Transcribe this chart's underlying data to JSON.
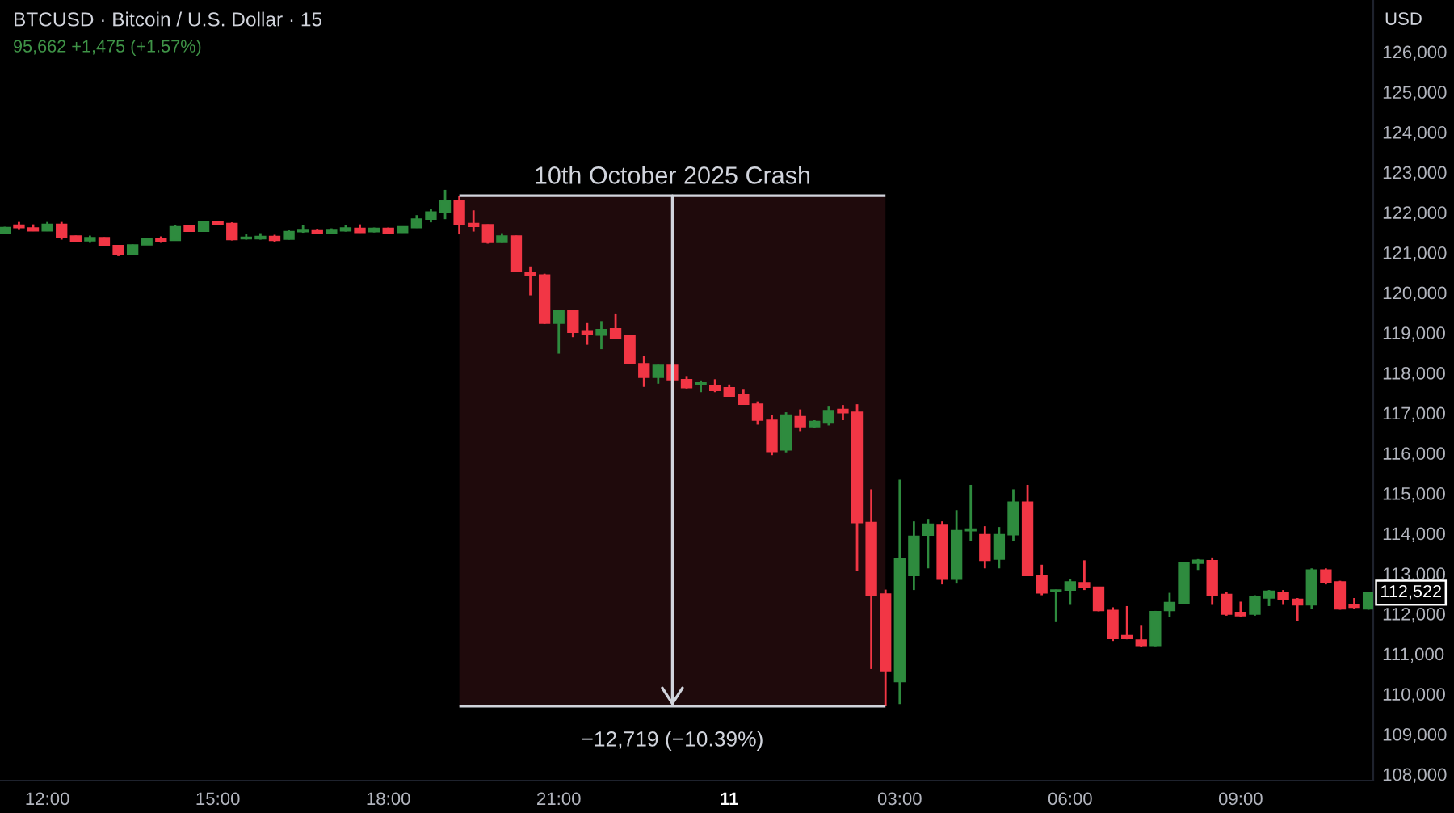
{
  "chart_data": {
    "type": "candlestick",
    "title": "BTCUSD · Bitcoin / U.S. Dollar · 15",
    "subtitle": "95,662 +1,475 (+1.57%)",
    "x": [
      "2025-10-10T11:15",
      "2025-10-10T11:30",
      "2025-10-10T11:45",
      "2025-10-10T12:00",
      "2025-10-10T12:15",
      "2025-10-10T12:30",
      "2025-10-10T12:45",
      "2025-10-10T13:00",
      "2025-10-10T13:15",
      "2025-10-10T13:30",
      "2025-10-10T13:45",
      "2025-10-10T14:00",
      "2025-10-10T14:15",
      "2025-10-10T14:30",
      "2025-10-10T14:45",
      "2025-10-10T15:00",
      "2025-10-10T15:15",
      "2025-10-10T15:30",
      "2025-10-10T15:45",
      "2025-10-10T16:00",
      "2025-10-10T16:15",
      "2025-10-10T16:30",
      "2025-10-10T16:45",
      "2025-10-10T17:00",
      "2025-10-10T17:15",
      "2025-10-10T17:30",
      "2025-10-10T17:45",
      "2025-10-10T18:00",
      "2025-10-10T18:15",
      "2025-10-10T18:30",
      "2025-10-10T18:45",
      "2025-10-10T19:00",
      "2025-10-10T19:15",
      "2025-10-10T19:30",
      "2025-10-10T19:45",
      "2025-10-10T20:00",
      "2025-10-10T20:15",
      "2025-10-10T20:30",
      "2025-10-10T20:45",
      "2025-10-10T21:00",
      "2025-10-10T21:15",
      "2025-10-10T21:30",
      "2025-10-10T21:45",
      "2025-10-10T22:00",
      "2025-10-10T22:15",
      "2025-10-10T22:30",
      "2025-10-10T22:45",
      "2025-10-10T23:00",
      "2025-10-10T23:15",
      "2025-10-10T23:30",
      "2025-10-10T23:45",
      "2025-10-11T00:00",
      "2025-10-11T00:15",
      "2025-10-11T00:30",
      "2025-10-11T00:45",
      "2025-10-11T01:00",
      "2025-10-11T01:15",
      "2025-10-11T01:30",
      "2025-10-11T01:45",
      "2025-10-11T02:00",
      "2025-10-11T02:15",
      "2025-10-11T02:30",
      "2025-10-11T02:45",
      "2025-10-11T03:00",
      "2025-10-11T03:15",
      "2025-10-11T03:30",
      "2025-10-11T03:45",
      "2025-10-11T04:00",
      "2025-10-11T04:15",
      "2025-10-11T04:30",
      "2025-10-11T04:45",
      "2025-10-11T05:00",
      "2025-10-11T05:15",
      "2025-10-11T05:30",
      "2025-10-11T05:45",
      "2025-10-11T06:00",
      "2025-10-11T06:15",
      "2025-10-11T06:30",
      "2025-10-11T06:45",
      "2025-10-11T07:00",
      "2025-10-11T07:15",
      "2025-10-11T07:30",
      "2025-10-11T07:45",
      "2025-10-11T08:00",
      "2025-10-11T08:15",
      "2025-10-11T08:30",
      "2025-10-11T08:45",
      "2025-10-11T09:00",
      "2025-10-11T09:15",
      "2025-10-11T09:30",
      "2025-10-11T09:45",
      "2025-10-11T10:00",
      "2025-10-11T10:15",
      "2025-10-11T10:30",
      "2025-10-11T10:45",
      "2025-10-11T11:00",
      "2025-10-11T11:15"
    ],
    "ohlc": [
      [
        121480,
        121640,
        121460,
        121620
      ],
      [
        121680,
        121760,
        121580,
        121620
      ],
      [
        121610,
        121700,
        121530,
        121540
      ],
      [
        121540,
        121760,
        121530,
        121700
      ],
      [
        121700,
        121760,
        121320,
        121370
      ],
      [
        121410,
        121420,
        121250,
        121280
      ],
      [
        121290,
        121420,
        121240,
        121370
      ],
      [
        121370,
        121380,
        121150,
        121170
      ],
      [
        121170,
        121180,
        120910,
        120950
      ],
      [
        120950,
        121200,
        120940,
        121190
      ],
      [
        121190,
        121350,
        121190,
        121340
      ],
      [
        121340,
        121400,
        121240,
        121280
      ],
      [
        121300,
        121690,
        121290,
        121640
      ],
      [
        121660,
        121690,
        121520,
        121530
      ],
      [
        121530,
        121790,
        121520,
        121770
      ],
      [
        121770,
        121790,
        121690,
        121700
      ],
      [
        121720,
        121750,
        121300,
        121320
      ],
      [
        121340,
        121450,
        121320,
        121380
      ],
      [
        121340,
        121480,
        121320,
        121400
      ],
      [
        121400,
        121440,
        121260,
        121300
      ],
      [
        121330,
        121550,
        121320,
        121520
      ],
      [
        121520,
        121680,
        121490,
        121570
      ],
      [
        121560,
        121590,
        121460,
        121480
      ],
      [
        121490,
        121600,
        121470,
        121570
      ],
      [
        121540,
        121680,
        121520,
        121610
      ],
      [
        121600,
        121700,
        121490,
        121500
      ],
      [
        121520,
        121620,
        121500,
        121600
      ],
      [
        121600,
        121620,
        121470,
        121490
      ],
      [
        121500,
        121650,
        121490,
        121640
      ],
      [
        121620,
        121930,
        121610,
        121830
      ],
      [
        121830,
        122090,
        121750,
        122010
      ],
      [
        121990,
        122560,
        121830,
        122300
      ],
      [
        122300,
        122416,
        121450,
        121700
      ],
      [
        121720,
        122050,
        121520,
        121650
      ],
      [
        121690,
        121700,
        121220,
        121250
      ],
      [
        121250,
        121480,
        121240,
        121410
      ],
      [
        121410,
        121420,
        120530,
        120540
      ],
      [
        120510,
        120650,
        119930,
        120440
      ],
      [
        120440,
        120470,
        119220,
        119240
      ],
      [
        119240,
        119570,
        118480,
        119560
      ],
      [
        119560,
        119570,
        118890,
        119010
      ],
      [
        119050,
        119240,
        118700,
        118950
      ],
      [
        118940,
        119290,
        118590,
        119080
      ],
      [
        119100,
        119480,
        118860,
        118870
      ],
      [
        118930,
        118940,
        118220,
        118230
      ],
      [
        118230,
        118430,
        117650,
        117890
      ],
      [
        117890,
        118200,
        117730,
        118190
      ],
      [
        118190,
        118200,
        117800,
        117830
      ],
      [
        117830,
        117920,
        117610,
        117630
      ],
      [
        117710,
        117810,
        117520,
        117750
      ],
      [
        117690,
        117840,
        117520,
        117560
      ],
      [
        117630,
        117710,
        117410,
        117420
      ],
      [
        117460,
        117600,
        117210,
        117220
      ],
      [
        117220,
        117290,
        116710,
        116820
      ],
      [
        116820,
        116950,
        115950,
        116040
      ],
      [
        116080,
        117020,
        116020,
        116950
      ],
      [
        116910,
        117090,
        116550,
        116660
      ],
      [
        116660,
        116820,
        116630,
        116790
      ],
      [
        116750,
        117160,
        116690,
        117060
      ],
      [
        117090,
        117200,
        116820,
        117010
      ],
      [
        117020,
        117220,
        113060,
        114270
      ],
      [
        114270,
        115100,
        110620,
        112460
      ],
      [
        112490,
        112600,
        109697,
        110580
      ],
      [
        110310,
        115340,
        109750,
        113360
      ],
      [
        112950,
        114300,
        112590,
        113930
      ],
      [
        113960,
        114360,
        113130,
        114230
      ],
      [
        114200,
        114300,
        112730,
        112860
      ],
      [
        112860,
        114580,
        112750,
        114070
      ],
      [
        114070,
        115210,
        113800,
        114110
      ],
      [
        113970,
        114180,
        113130,
        113330
      ],
      [
        113360,
        114160,
        113130,
        113970
      ],
      [
        113970,
        115100,
        113800,
        114780
      ],
      [
        114780,
        115210,
        112940,
        112950
      ],
      [
        112950,
        113220,
        112460,
        112520
      ],
      [
        112550,
        112600,
        111790,
        112590
      ],
      [
        112590,
        112860,
        112220,
        112790
      ],
      [
        112770,
        113330,
        112590,
        112660
      ],
      [
        112660,
        112670,
        112060,
        112080
      ],
      [
        112080,
        112160,
        111320,
        111380
      ],
      [
        111450,
        112190,
        111360,
        111380
      ],
      [
        111340,
        111720,
        111180,
        111210
      ],
      [
        111210,
        112070,
        111190,
        112050
      ],
      [
        112080,
        112520,
        111920,
        112280
      ],
      [
        112260,
        113280,
        112240,
        113260
      ],
      [
        113260,
        113360,
        113090,
        113330
      ],
      [
        113320,
        113400,
        112220,
        112460
      ],
      [
        112480,
        112550,
        111950,
        111990
      ],
      [
        112030,
        112300,
        111920,
        111950
      ],
      [
        111990,
        112460,
        111950,
        112420
      ],
      [
        112390,
        112590,
        112190,
        112560
      ],
      [
        112520,
        112590,
        112220,
        112350
      ],
      [
        112360,
        112390,
        111810,
        112220
      ],
      [
        112220,
        113130,
        112120,
        113090
      ],
      [
        113090,
        113130,
        112730,
        112790
      ],
      [
        112790,
        112820,
        112100,
        112120
      ],
      [
        112220,
        112390,
        112120,
        112160
      ],
      [
        112120,
        112540,
        112100,
        112522
      ]
    ],
    "colors": [
      "#2e8b3e",
      "#f23645",
      "#f23645",
      "#2e8b3e",
      "#f23645",
      "#f23645",
      "#2e8b3e",
      "#f23645",
      "#f23645",
      "#2e8b3e",
      "#2e8b3e",
      "#f23645",
      "#2e8b3e",
      "#f23645",
      "#2e8b3e",
      "#f23645",
      "#f23645",
      "#2e8b3e",
      "#2e8b3e",
      "#f23645",
      "#2e8b3e",
      "#2e8b3e",
      "#f23645",
      "#2e8b3e",
      "#2e8b3e",
      "#f23645",
      "#2e8b3e",
      "#f23645",
      "#2e8b3e",
      "#2e8b3e",
      "#2e8b3e",
      "#2e8b3e",
      "#f23645",
      "#f23645",
      "#f23645",
      "#2e8b3e",
      "#f23645",
      "#f23645",
      "#f23645",
      "#2e8b3e",
      "#f23645",
      "#f23645",
      "#2e8b3e",
      "#f23645",
      "#f23645",
      "#f23645",
      "#2e8b3e",
      "#f23645",
      "#f23645",
      "#2e8b3e",
      "#f23645",
      "#f23645",
      "#f23645",
      "#f23645",
      "#f23645",
      "#2e8b3e",
      "#f23645",
      "#2e8b3e",
      "#2e8b3e",
      "#f23645",
      "#f23645",
      "#f23645",
      "#f23645",
      "#2e8b3e",
      "#2e8b3e",
      "#2e8b3e",
      "#f23645",
      "#2e8b3e",
      "#2e8b3e",
      "#f23645",
      "#2e8b3e",
      "#2e8b3e",
      "#f23645",
      "#f23645",
      "#2e8b3e",
      "#2e8b3e",
      "#f23645",
      "#f23645",
      "#f23645",
      "#f23645",
      "#f23645",
      "#2e8b3e",
      "#2e8b3e",
      "#2e8b3e",
      "#2e8b3e",
      "#f23645",
      "#f23645",
      "#f23645",
      "#2e8b3e",
      "#2e8b3e",
      "#f23645",
      "#f23645",
      "#2e8b3e",
      "#f23645",
      "#f23645",
      "#f23645",
      "#2e8b3e"
    ],
    "xlim": [
      "2025-10-10T11:10",
      "2025-10-11T11:20"
    ],
    "ylim": [
      107840,
      127290
    ],
    "xticks": [
      {
        "value": "2025-10-10T12:00",
        "label": "12:00"
      },
      {
        "value": "2025-10-10T15:00",
        "label": "15:00"
      },
      {
        "value": "2025-10-10T18:00",
        "label": "18:00"
      },
      {
        "value": "2025-10-10T21:00",
        "label": "21:00"
      },
      {
        "value": "2025-10-11T00:00",
        "label": "11"
      },
      {
        "value": "2025-10-11T03:00",
        "label": "03:00"
      },
      {
        "value": "2025-10-11T06:00",
        "label": "06:00"
      },
      {
        "value": "2025-10-11T09:00",
        "label": "09:00"
      }
    ],
    "yticks": [
      {
        "value": 108000,
        "label": "108,000"
      },
      {
        "value": 109000,
        "label": "109,000"
      },
      {
        "value": 110000,
        "label": "110,000"
      },
      {
        "value": 111000,
        "label": "111,000"
      },
      {
        "value": 112000,
        "label": "112,000"
      },
      {
        "value": 113000,
        "label": "113,000"
      },
      {
        "value": 114000,
        "label": "114,000"
      },
      {
        "value": 115000,
        "label": "115,000"
      },
      {
        "value": 116000,
        "label": "116,000"
      },
      {
        "value": 117000,
        "label": "117,000"
      },
      {
        "value": 118000,
        "label": "118,000"
      },
      {
        "value": 119000,
        "label": "119,000"
      },
      {
        "value": 120000,
        "label": "120,000"
      },
      {
        "value": 121000,
        "label": "121,000"
      },
      {
        "value": 122000,
        "label": "122,000"
      },
      {
        "value": 123000,
        "label": "123,000"
      },
      {
        "value": 124000,
        "label": "124,000"
      },
      {
        "value": 125000,
        "label": "125,000"
      },
      {
        "value": 126000,
        "label": "126,000"
      }
    ],
    "bands": [
      {
        "axis": "x",
        "from": "2025-10-10T19:15",
        "to": "2025-10-11T02:45",
        "color": "#1f0a0c"
      }
    ],
    "ref_lines": [
      {
        "axis": "y",
        "value": 122416,
        "label": "10th October 2025 Crash",
        "color": "#d1d4dc"
      },
      {
        "axis": "y",
        "value": 109697,
        "label": "−12,719 (−10.39%)",
        "color": "#d1d4dc"
      }
    ],
    "annotations": [
      {
        "text": "112,522",
        "y": 112522
      },
      "USD"
    ]
  }
}
